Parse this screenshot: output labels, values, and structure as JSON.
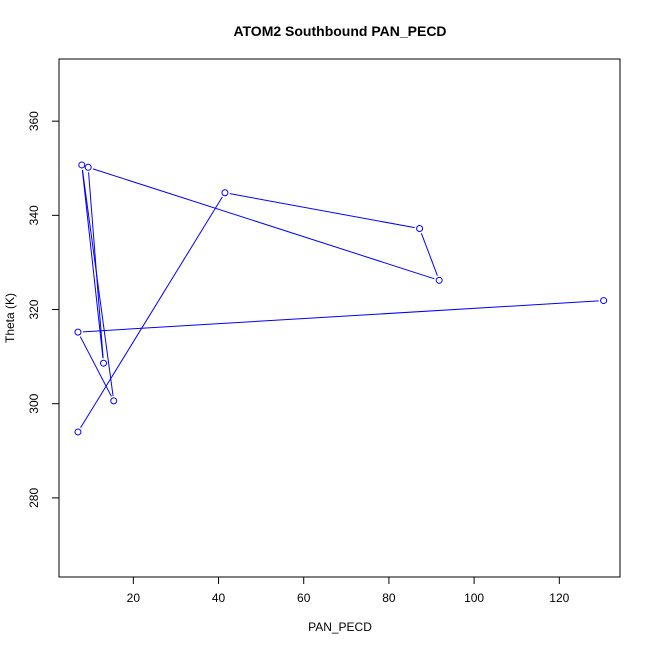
{
  "chart_data": {
    "type": "line",
    "title": "ATOM2 Southbound PAN_PECD",
    "xlabel": "PAN_PECD",
    "ylabel": "Theta (K)",
    "xlim": [
      2.55,
      134.25
    ],
    "ylim": [
      263.2,
      373.2
    ],
    "xticks": [
      20,
      40,
      60,
      80,
      100,
      120
    ],
    "yticks": [
      280,
      300,
      320,
      340,
      360
    ],
    "grid": false,
    "legend": "none",
    "series": [
      {
        "color": "#0000ff",
        "marker": "open-circle",
        "x": [
          7.0,
          41.5,
          87.2,
          91.8,
          9.4,
          13.0,
          7.9,
          15.4,
          7.0,
          130.4
        ],
        "y": [
          294.0,
          344.8,
          337.2,
          326.2,
          350.2,
          308.6,
          350.7,
          300.6,
          315.2,
          321.9
        ]
      }
    ]
  }
}
